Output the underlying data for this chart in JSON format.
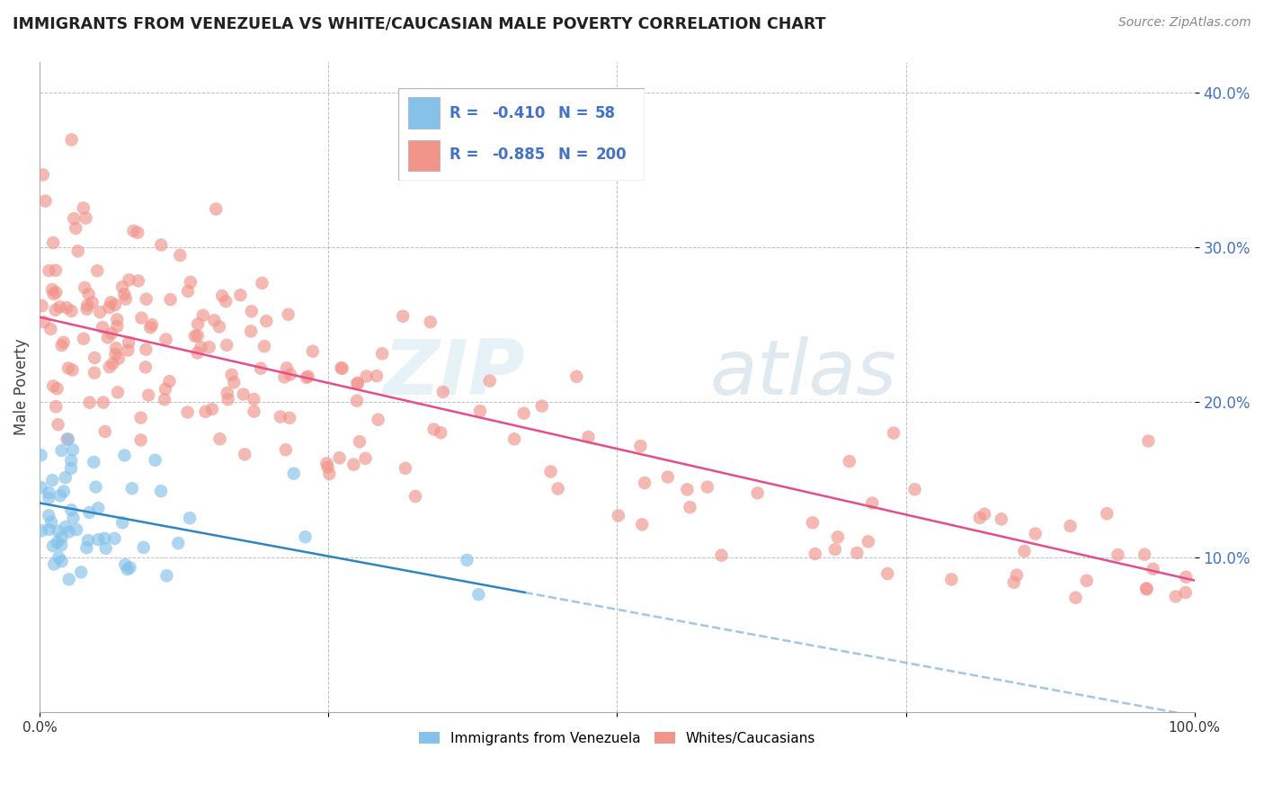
{
  "title": "IMMIGRANTS FROM VENEZUELA VS WHITE/CAUCASIAN MALE POVERTY CORRELATION CHART",
  "source": "Source: ZipAtlas.com",
  "ylabel": "Male Poverty",
  "xlim": [
    0.0,
    1.0
  ],
  "ylim": [
    0.0,
    0.42
  ],
  "yticks": [
    0.1,
    0.2,
    0.3,
    0.4
  ],
  "ytick_labels": [
    "10.0%",
    "20.0%",
    "30.0%",
    "40.0%"
  ],
  "blue_R": -0.41,
  "blue_N": 58,
  "pink_R": -0.885,
  "pink_N": 200,
  "blue_color": "#85c1e9",
  "pink_color": "#f1948a",
  "blue_line_color": "#2e86c1",
  "pink_line_color": "#e74c8b",
  "watermark_zip": "ZIP",
  "watermark_atlas": "atlas",
  "legend_label_blue": "Immigrants from Venezuela",
  "legend_label_pink": "Whites/Caucasians",
  "blue_line_x0": 0.0,
  "blue_line_y0": 0.135,
  "blue_line_x1": 0.4,
  "blue_line_y1": 0.08,
  "pink_line_x0": 0.0,
  "pink_line_x1": 1.0,
  "pink_line_y0": 0.255,
  "pink_line_y1": 0.085
}
